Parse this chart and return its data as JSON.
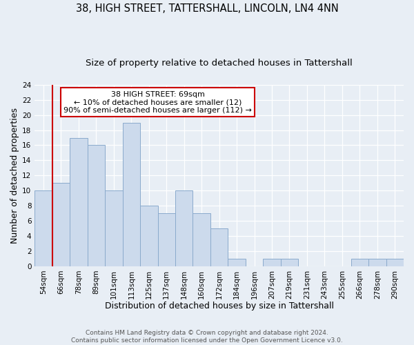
{
  "title": "38, HIGH STREET, TATTERSHALL, LINCOLN, LN4 4NN",
  "subtitle": "Size of property relative to detached houses in Tattershall",
  "xlabel": "Distribution of detached houses by size in Tattershall",
  "ylabel": "Number of detached properties",
  "bin_labels": [
    "54sqm",
    "66sqm",
    "78sqm",
    "89sqm",
    "101sqm",
    "113sqm",
    "125sqm",
    "137sqm",
    "148sqm",
    "160sqm",
    "172sqm",
    "184sqm",
    "196sqm",
    "207sqm",
    "219sqm",
    "231sqm",
    "243sqm",
    "255sqm",
    "266sqm",
    "278sqm",
    "290sqm"
  ],
  "bar_values": [
    10,
    11,
    17,
    16,
    10,
    19,
    8,
    7,
    10,
    7,
    5,
    1,
    0,
    1,
    1,
    0,
    0,
    0,
    1,
    1,
    1
  ],
  "bar_color": "#ccdaec",
  "bar_edge_color": "#8aaacc",
  "background_color": "#e8eef5",
  "vline_color": "#cc0000",
  "annotation_title": "38 HIGH STREET: 69sqm",
  "annotation_line1": "← 10% of detached houses are smaller (12)",
  "annotation_line2": "90% of semi-detached houses are larger (112) →",
  "annotation_box_color": "#ffffff",
  "annotation_box_edge_color": "#cc0000",
  "ylim": [
    0,
    24
  ],
  "yticks": [
    0,
    2,
    4,
    6,
    8,
    10,
    12,
    14,
    16,
    18,
    20,
    22,
    24
  ],
  "footer_line1": "Contains HM Land Registry data © Crown copyright and database right 2024.",
  "footer_line2": "Contains public sector information licensed under the Open Government Licence v3.0.",
  "title_fontsize": 10.5,
  "subtitle_fontsize": 9.5,
  "axis_label_fontsize": 9,
  "tick_fontsize": 7.5,
  "annotation_fontsize": 8,
  "footer_fontsize": 6.5
}
